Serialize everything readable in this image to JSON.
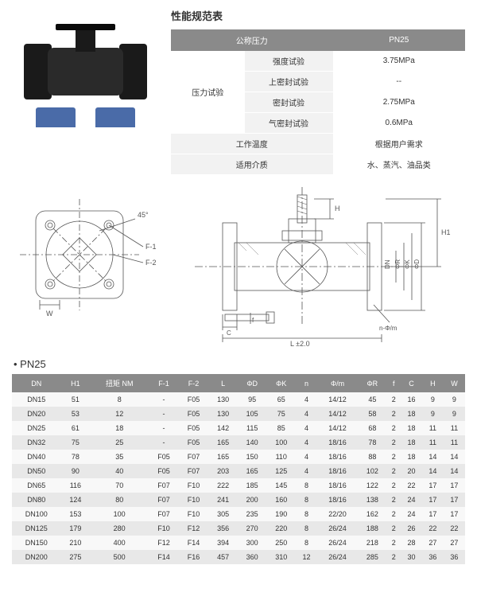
{
  "spec": {
    "title": "性能规范表",
    "headers": [
      "公称压力",
      "PN25"
    ],
    "pressure_label": "压力试验",
    "rows": [
      {
        "label": "强度试验",
        "value": "3.75MPa"
      },
      {
        "label": "上密封试验",
        "value": "--"
      },
      {
        "label": "密封试验",
        "value": "2.75MPa"
      },
      {
        "label": "气密封试验",
        "value": "0.6MPa"
      }
    ],
    "extra": [
      {
        "label": "工作温度",
        "value": "根据用户需求"
      },
      {
        "label": "适用介质",
        "value": "水、蒸汽、油品类"
      }
    ]
  },
  "dim_labels": {
    "angle": "45°",
    "f1": "F-1",
    "f2": "F-2",
    "w": "W",
    "h": "H",
    "h1": "H1",
    "dn": "DN",
    "phiR": "ΦR",
    "phiK": "ΦK",
    "phiD": "ΦD",
    "nphi": "n-Φ/m",
    "f": "f",
    "c": "C",
    "L": "L ±2.0"
  },
  "dims": {
    "title": "• PN25",
    "headers": [
      "DN",
      "H1",
      "扭矩  NM",
      "F-1",
      "F-2",
      "L",
      "ΦD",
      "ΦK",
      "n",
      "Φ/m",
      "ΦR",
      "f",
      "C",
      "H",
      "W"
    ],
    "rows": [
      [
        "DN15",
        "51",
        "8",
        "-",
        "F05",
        "130",
        "95",
        "65",
        "4",
        "14/12",
        "45",
        "2",
        "16",
        "9",
        "9"
      ],
      [
        "DN20",
        "53",
        "12",
        "-",
        "F05",
        "130",
        "105",
        "75",
        "4",
        "14/12",
        "58",
        "2",
        "18",
        "9",
        "9"
      ],
      [
        "DN25",
        "61",
        "18",
        "-",
        "F05",
        "142",
        "115",
        "85",
        "4",
        "14/12",
        "68",
        "2",
        "18",
        "11",
        "11"
      ],
      [
        "DN32",
        "75",
        "25",
        "-",
        "F05",
        "165",
        "140",
        "100",
        "4",
        "18/16",
        "78",
        "2",
        "18",
        "11",
        "11"
      ],
      [
        "DN40",
        "78",
        "35",
        "F05",
        "F07",
        "165",
        "150",
        "110",
        "4",
        "18/16",
        "88",
        "2",
        "18",
        "14",
        "14"
      ],
      [
        "DN50",
        "90",
        "40",
        "F05",
        "F07",
        "203",
        "165",
        "125",
        "4",
        "18/16",
        "102",
        "2",
        "20",
        "14",
        "14"
      ],
      [
        "DN65",
        "116",
        "70",
        "F07",
        "F10",
        "222",
        "185",
        "145",
        "8",
        "18/16",
        "122",
        "2",
        "22",
        "17",
        "17"
      ],
      [
        "DN80",
        "124",
        "80",
        "F07",
        "F10",
        "241",
        "200",
        "160",
        "8",
        "18/16",
        "138",
        "2",
        "24",
        "17",
        "17"
      ],
      [
        "DN100",
        "153",
        "100",
        "F07",
        "F10",
        "305",
        "235",
        "190",
        "8",
        "22/20",
        "162",
        "2",
        "24",
        "17",
        "17"
      ],
      [
        "DN125",
        "179",
        "280",
        "F10",
        "F12",
        "356",
        "270",
        "220",
        "8",
        "26/24",
        "188",
        "2",
        "26",
        "22",
        "22"
      ],
      [
        "DN150",
        "210",
        "400",
        "F12",
        "F14",
        "394",
        "300",
        "250",
        "8",
        "26/24",
        "218",
        "2",
        "28",
        "27",
        "27"
      ],
      [
        "DN200",
        "275",
        "500",
        "F14",
        "F16",
        "457",
        "360",
        "310",
        "12",
        "26/24",
        "285",
        "2",
        "30",
        "36",
        "36"
      ]
    ]
  }
}
